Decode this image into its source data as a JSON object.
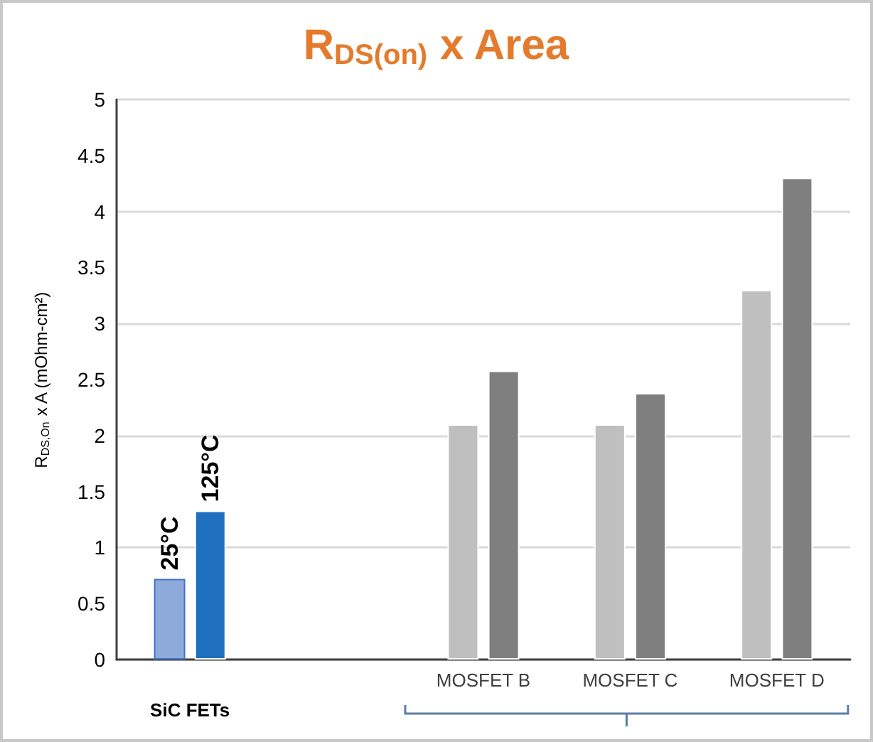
{
  "chart_data": {
    "type": "bar",
    "title": "R$_{DS(on)}$ x Area",
    "ylabel": "R$_{DS,On}$ x A (mOhm-cm²)",
    "categories": [
      null,
      null,
      "MOSFET B",
      "MOSFET C",
      "MOSFET D"
    ],
    "series": [
      {
        "name": "25°C",
        "colors": [
          "#8eaadb",
          "#bfbfbf",
          "#bfbfbf",
          "#bfbfbf",
          "#bfbfbf"
        ],
        "values": [
          0.72,
          null,
          2.1,
          2.1,
          3.3
        ]
      },
      {
        "name": "125°C",
        "colors": [
          "#1f6fbf",
          "#7f7f7f",
          "#7f7f7f",
          "#7f7f7f",
          "#7f7f7f"
        ],
        "values": [
          1.33,
          null,
          2.58,
          2.38,
          4.3
        ]
      }
    ],
    "ylim": [
      0,
      5
    ],
    "yticks": [
      0,
      0.5,
      1,
      1.5,
      2,
      2.5,
      3,
      3.5,
      4,
      4.5,
      5
    ],
    "annotations": [
      "SiC FETs"
    ],
    "grid": "y",
    "legend": false
  }
}
